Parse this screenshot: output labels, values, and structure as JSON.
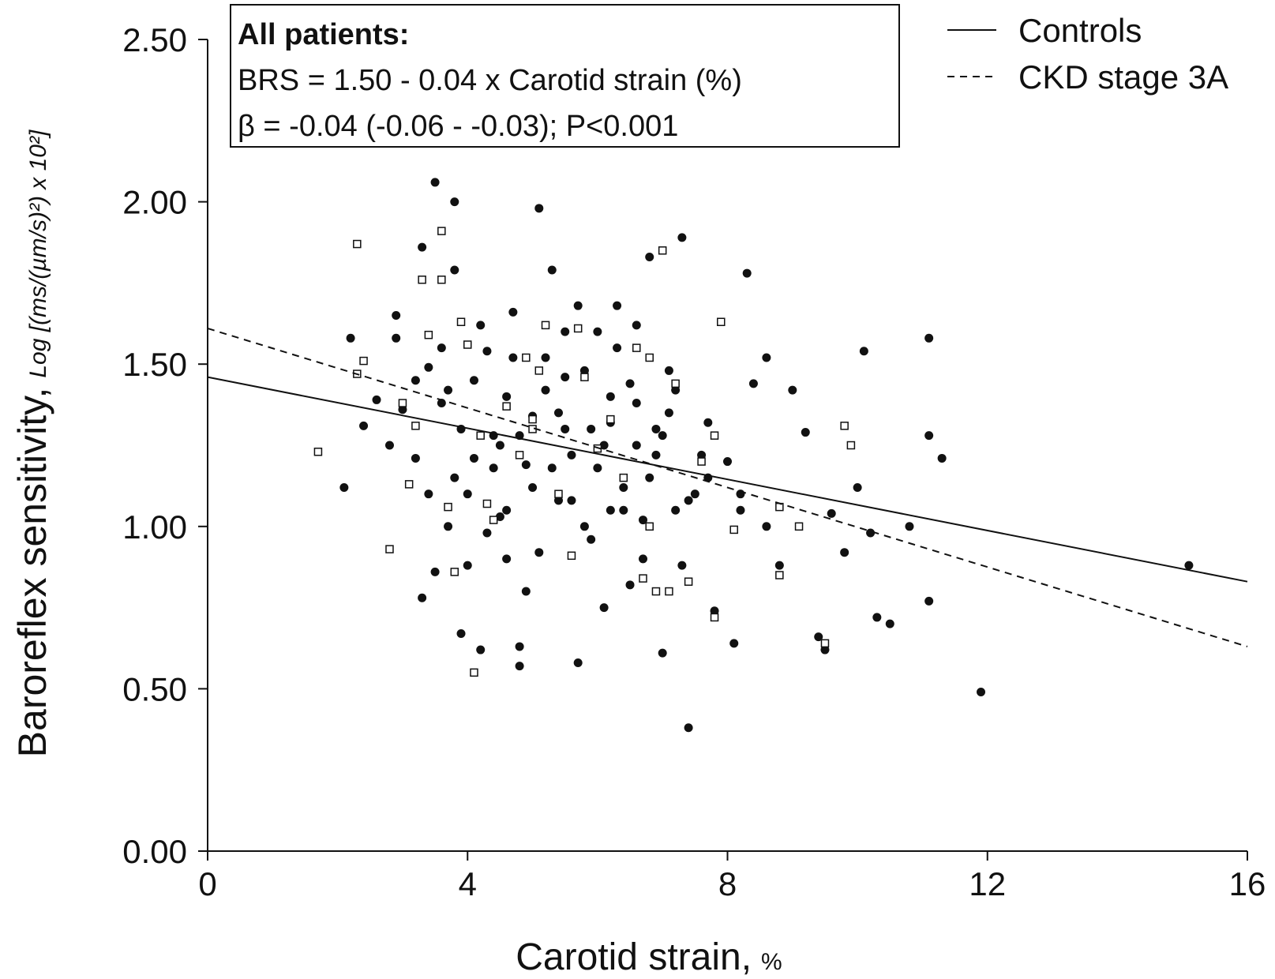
{
  "chart_data": {
    "type": "scatter",
    "xlabel": "Carotid strain,",
    "xlabel_unit": "%",
    "ylabel": "Baroreflex sensitivity,",
    "ylabel_unit": "Log [(ms/(µm/s)²) x 10²]",
    "xlim": [
      0,
      16
    ],
    "ylim": [
      0,
      2.5
    ],
    "x_ticks": [
      "0",
      "4",
      "8",
      "12",
      "16"
    ],
    "y_ticks": [
      "0.00",
      "0.50",
      "1.00",
      "1.50",
      "2.00",
      "2.50"
    ],
    "grid": false,
    "legend_position": "top-right",
    "annotation": {
      "heading": "All patients:",
      "line1": "BRS = 1.50 - 0.04 x Carotid strain (%)",
      "line2": "β = -0.04 (-0.06 - -0.03); P<0.001"
    },
    "lines": [
      {
        "name": "Controls",
        "style": "solid",
        "x": [
          0,
          16
        ],
        "y": [
          1.46,
          0.83
        ]
      },
      {
        "name": "CKD stage 3A",
        "style": "dashed",
        "x": [
          0,
          16
        ],
        "y": [
          1.61,
          0.63
        ]
      }
    ],
    "series": [
      {
        "name": "Controls",
        "marker": "filled-circle",
        "color": "#111111",
        "points": [
          [
            2.1,
            1.12
          ],
          [
            2.2,
            1.58
          ],
          [
            2.4,
            1.31
          ],
          [
            2.6,
            1.39
          ],
          [
            2.8,
            1.25
          ],
          [
            2.9,
            1.58
          ],
          [
            2.9,
            1.65
          ],
          [
            3.0,
            1.36
          ],
          [
            3.2,
            1.21
          ],
          [
            3.3,
            1.86
          ],
          [
            3.3,
            0.78
          ],
          [
            3.4,
            1.49
          ],
          [
            3.5,
            2.06
          ],
          [
            3.6,
            1.55
          ],
          [
            3.7,
            1.0
          ],
          [
            3.8,
            2.0
          ],
          [
            3.8,
            1.79
          ],
          [
            3.9,
            0.67
          ],
          [
            4.0,
            0.88
          ],
          [
            4.1,
            1.21
          ],
          [
            4.2,
            0.62
          ],
          [
            4.3,
            1.54
          ],
          [
            4.4,
            1.28
          ],
          [
            4.5,
            1.03
          ],
          [
            4.6,
            0.9
          ],
          [
            4.7,
            1.66
          ],
          [
            4.8,
            0.57
          ],
          [
            4.8,
            0.63
          ],
          [
            4.9,
            1.19
          ],
          [
            5.0,
            1.34
          ],
          [
            5.1,
            1.98
          ],
          [
            5.2,
            1.52
          ],
          [
            5.3,
            1.79
          ],
          [
            5.4,
            1.08
          ],
          [
            5.5,
            1.46
          ],
          [
            5.6,
            1.22
          ],
          [
            5.7,
            0.58
          ],
          [
            5.8,
            1.0
          ],
          [
            5.9,
            1.3
          ],
          [
            6.0,
            1.6
          ],
          [
            6.1,
            0.75
          ],
          [
            6.2,
            1.4
          ],
          [
            6.3,
            1.68
          ],
          [
            6.4,
            1.12
          ],
          [
            6.5,
            1.44
          ],
          [
            6.6,
            1.25
          ],
          [
            6.7,
            0.9
          ],
          [
            6.8,
            1.83
          ],
          [
            6.9,
            1.22
          ],
          [
            7.0,
            0.61
          ],
          [
            7.1,
            1.35
          ],
          [
            7.2,
            1.05
          ],
          [
            7.3,
            1.89
          ],
          [
            7.4,
            0.38
          ],
          [
            7.5,
            1.1
          ],
          [
            7.7,
            1.32
          ],
          [
            7.8,
            0.74
          ],
          [
            8.0,
            1.2
          ],
          [
            8.1,
            0.64
          ],
          [
            8.2,
            1.05
          ],
          [
            8.3,
            1.78
          ],
          [
            8.4,
            1.44
          ],
          [
            8.6,
            1.52
          ],
          [
            8.8,
            0.88
          ],
          [
            9.0,
            1.42
          ],
          [
            9.2,
            1.29
          ],
          [
            9.4,
            0.66
          ],
          [
            9.5,
            0.62
          ],
          [
            9.6,
            1.04
          ],
          [
            9.8,
            0.92
          ],
          [
            10.0,
            1.12
          ],
          [
            10.1,
            1.54
          ],
          [
            10.2,
            0.98
          ],
          [
            10.3,
            0.72
          ],
          [
            10.5,
            0.7
          ],
          [
            10.8,
            1.0
          ],
          [
            11.1,
            1.58
          ],
          [
            11.1,
            1.28
          ],
          [
            11.1,
            0.77
          ],
          [
            11.3,
            1.21
          ],
          [
            11.9,
            0.49
          ],
          [
            15.1,
            0.88
          ],
          [
            3.2,
            1.45
          ],
          [
            3.6,
            1.38
          ],
          [
            3.9,
            1.3
          ],
          [
            4.1,
            1.45
          ],
          [
            4.4,
            1.18
          ],
          [
            4.6,
            1.4
          ],
          [
            4.8,
            1.28
          ],
          [
            5.0,
            1.12
          ],
          [
            5.2,
            1.42
          ],
          [
            5.4,
            1.35
          ],
          [
            5.6,
            1.08
          ],
          [
            5.8,
            1.48
          ],
          [
            6.0,
            1.18
          ],
          [
            6.2,
            1.32
          ],
          [
            6.4,
            1.05
          ],
          [
            6.6,
            1.38
          ],
          [
            6.8,
            1.15
          ],
          [
            7.0,
            1.28
          ],
          [
            7.2,
            1.42
          ],
          [
            7.4,
            1.08
          ],
          [
            4.0,
            1.1
          ],
          [
            4.3,
            0.98
          ],
          [
            4.7,
            1.52
          ],
          [
            5.1,
            0.92
          ],
          [
            5.5,
            1.6
          ],
          [
            5.9,
            0.96
          ],
          [
            6.3,
            1.55
          ],
          [
            6.7,
            1.02
          ],
          [
            7.1,
            1.48
          ],
          [
            7.6,
            1.22
          ],
          [
            3.4,
            1.1
          ],
          [
            3.7,
            1.42
          ],
          [
            4.5,
            1.25
          ],
          [
            5.3,
            1.18
          ],
          [
            6.1,
            1.25
          ],
          [
            6.9,
            1.3
          ],
          [
            7.7,
            1.15
          ],
          [
            8.2,
            1.1
          ],
          [
            8.6,
            1.0
          ],
          [
            3.5,
            0.86
          ],
          [
            4.9,
            0.8
          ],
          [
            6.5,
            0.82
          ],
          [
            7.3,
            0.88
          ],
          [
            4.2,
            1.62
          ],
          [
            5.7,
            1.68
          ],
          [
            6.6,
            1.62
          ],
          [
            3.8,
            1.15
          ],
          [
            4.6,
            1.05
          ],
          [
            5.5,
            1.3
          ],
          [
            6.2,
            1.05
          ]
        ]
      },
      {
        "name": "CKD stage 3A",
        "marker": "open-square",
        "color": "#111111",
        "points": [
          [
            1.7,
            1.23
          ],
          [
            2.3,
            1.87
          ],
          [
            2.3,
            1.47
          ],
          [
            2.8,
            0.93
          ],
          [
            3.0,
            1.38
          ],
          [
            3.1,
            1.13
          ],
          [
            3.3,
            1.76
          ],
          [
            3.4,
            1.59
          ],
          [
            3.6,
            1.91
          ],
          [
            3.6,
            1.76
          ],
          [
            3.7,
            1.06
          ],
          [
            3.8,
            0.86
          ],
          [
            3.9,
            1.63
          ],
          [
            4.0,
            1.56
          ],
          [
            4.1,
            0.55
          ],
          [
            4.2,
            1.28
          ],
          [
            4.3,
            1.07
          ],
          [
            4.4,
            1.02
          ],
          [
            4.6,
            1.37
          ],
          [
            4.8,
            1.22
          ],
          [
            4.9,
            1.52
          ],
          [
            5.0,
            1.3
          ],
          [
            5.1,
            1.48
          ],
          [
            5.2,
            1.62
          ],
          [
            5.4,
            1.1
          ],
          [
            5.6,
            0.91
          ],
          [
            5.7,
            1.61
          ],
          [
            5.8,
            1.46
          ],
          [
            6.0,
            1.24
          ],
          [
            6.2,
            1.33
          ],
          [
            6.4,
            1.15
          ],
          [
            6.6,
            1.55
          ],
          [
            6.7,
            0.84
          ],
          [
            6.8,
            1.0
          ],
          [
            6.9,
            0.8
          ],
          [
            7.0,
            1.85
          ],
          [
            7.1,
            0.8
          ],
          [
            7.2,
            1.44
          ],
          [
            7.4,
            0.83
          ],
          [
            7.6,
            1.2
          ],
          [
            7.8,
            0.72
          ],
          [
            7.8,
            1.28
          ],
          [
            7.9,
            1.63
          ],
          [
            8.1,
            0.99
          ],
          [
            8.8,
            0.85
          ],
          [
            8.8,
            1.06
          ],
          [
            9.1,
            1.0
          ],
          [
            9.5,
            0.64
          ],
          [
            9.8,
            1.31
          ],
          [
            9.9,
            1.25
          ],
          [
            2.4,
            1.51
          ],
          [
            3.2,
            1.31
          ],
          [
            5.0,
            1.33
          ],
          [
            6.8,
            1.52
          ]
        ]
      }
    ]
  }
}
